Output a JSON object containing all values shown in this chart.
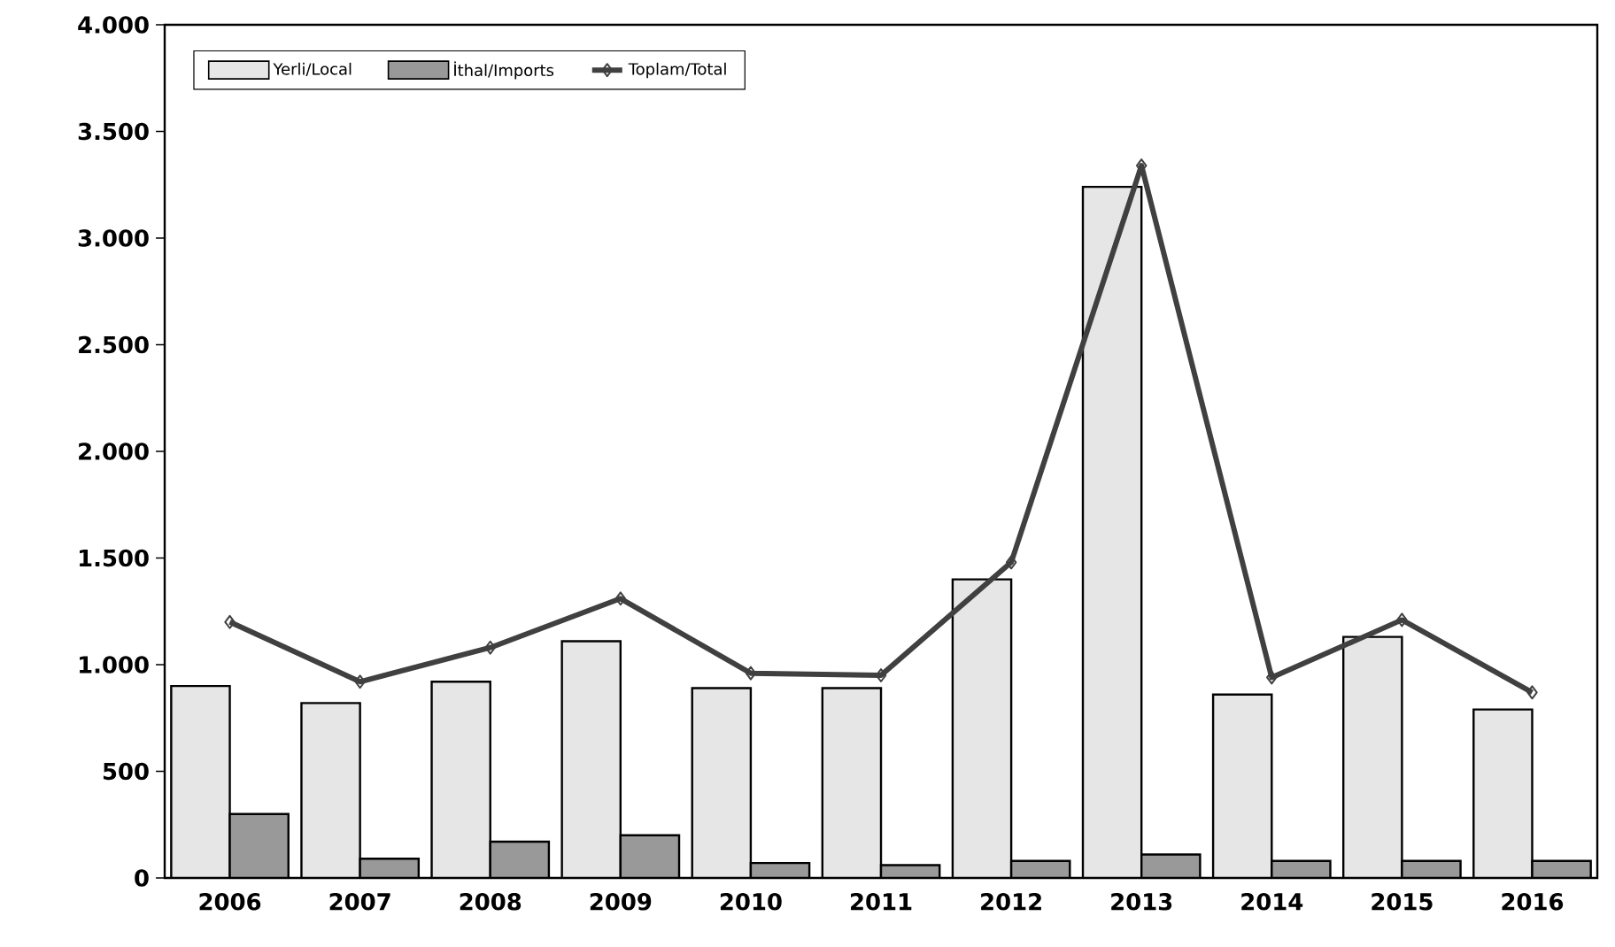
{
  "chart_data": {
    "type": "bar",
    "categories": [
      "2006",
      "2007",
      "2008",
      "2009",
      "2010",
      "2011",
      "2012",
      "2013",
      "2014",
      "2015",
      "2016"
    ],
    "series": [
      {
        "name": "Yerli/Local",
        "color": "#e6e6e6",
        "values": [
          900,
          820,
          920,
          1110,
          890,
          890,
          1400,
          3240,
          860,
          1130,
          790
        ]
      },
      {
        "name": "İthal/Imports",
        "color": "#999999",
        "values": [
          300,
          90,
          170,
          200,
          70,
          60,
          80,
          110,
          80,
          80,
          80
        ]
      },
      {
        "name": "Toplam/Total",
        "type": "line",
        "color": "#404040",
        "values": [
          1200,
          920,
          1080,
          1310,
          960,
          950,
          1480,
          3340,
          940,
          1210,
          870
        ]
      }
    ],
    "ylim": [
      0,
      4000
    ],
    "yticks": [
      {
        "value": 0,
        "label": "0"
      },
      {
        "value": 500,
        "label": "500"
      },
      {
        "value": 1000,
        "label": "1.000"
      },
      {
        "value": 1500,
        "label": "1.500"
      },
      {
        "value": 2000,
        "label": "2.000"
      },
      {
        "value": 2500,
        "label": "2.500"
      },
      {
        "value": 3000,
        "label": "3.000"
      },
      {
        "value": 3500,
        "label": "3.500"
      },
      {
        "value": 4000,
        "label": "4.000"
      }
    ],
    "grid": false,
    "legend": "top",
    "marker": "diamond",
    "line_style": "solid"
  }
}
